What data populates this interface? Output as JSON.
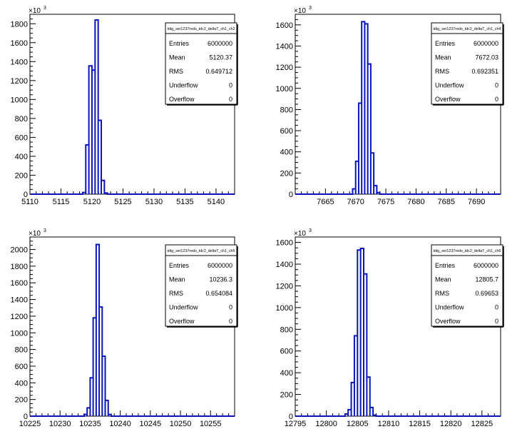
{
  "chart_data": [
    {
      "type": "histogram",
      "stats": {
        "title": "tdig_ser1237redo_tdc2_deltaT_ch1_ch2",
        "rows": [
          {
            "label": "Entries",
            "value": "6000000"
          },
          {
            "label": "Mean",
            "value": "5120.37"
          },
          {
            "label": "RMS",
            "value": "0.649712"
          },
          {
            "label": "Underflow",
            "value": "0"
          },
          {
            "label": "Overflow",
            "value": "0"
          }
        ]
      },
      "y_multiplier": "×10",
      "y_multiplier_exp": "3",
      "xlim": [
        5110,
        5143
      ],
      "ylim": [
        0,
        1900
      ],
      "xticks": [
        5110,
        5115,
        5120,
        5125,
        5130,
        5135,
        5140
      ],
      "yticks": [
        0,
        200,
        400,
        600,
        800,
        1000,
        1200,
        1400,
        1600,
        1800
      ],
      "bin_width": 0.5,
      "bins": [
        {
          "x": 5118.5,
          "y": 18
        },
        {
          "x": 5119.0,
          "y": 520
        },
        {
          "x": 5119.5,
          "y": 1355
        },
        {
          "x": 5120.0,
          "y": 1310
        },
        {
          "x": 5120.5,
          "y": 1840
        },
        {
          "x": 5121.0,
          "y": 780
        },
        {
          "x": 5121.5,
          "y": 145
        },
        {
          "x": 5122.0,
          "y": 12
        }
      ]
    },
    {
      "type": "histogram",
      "stats": {
        "title": "tdig_ser1237redo_tdc2_deltaT_ch1_ch4",
        "rows": [
          {
            "label": "Entries",
            "value": "6000000"
          },
          {
            "label": "Mean",
            "value": "7672.03"
          },
          {
            "label": "RMS",
            "value": "0.692351"
          },
          {
            "label": "Underflow",
            "value": "0"
          },
          {
            "label": "Overflow",
            "value": "0"
          }
        ]
      },
      "y_multiplier": "×10",
      "y_multiplier_exp": "3",
      "xlim": [
        7660,
        7694
      ],
      "ylim": [
        0,
        1700
      ],
      "xticks": [
        7665,
        7670,
        7675,
        7680,
        7685,
        7690
      ],
      "yticks": [
        0,
        200,
        400,
        600,
        800,
        1000,
        1200,
        1400,
        1600
      ],
      "bin_width": 0.5,
      "bins": [
        {
          "x": 7669.5,
          "y": 50
        },
        {
          "x": 7670.0,
          "y": 310
        },
        {
          "x": 7670.5,
          "y": 860
        },
        {
          "x": 7671.0,
          "y": 1630
        },
        {
          "x": 7671.5,
          "y": 1610
        },
        {
          "x": 7672.0,
          "y": 1230
        },
        {
          "x": 7672.5,
          "y": 390
        },
        {
          "x": 7673.0,
          "y": 80
        },
        {
          "x": 7673.5,
          "y": 15
        }
      ]
    },
    {
      "type": "histogram",
      "stats": {
        "title": "tdig_ser1237redo_tdc2_deltaT_ch1_ch5",
        "rows": [
          {
            "label": "Entries",
            "value": "6000000"
          },
          {
            "label": "Mean",
            "value": "10236.3"
          },
          {
            "label": "RMS",
            "value": "0.654084"
          },
          {
            "label": "Underflow",
            "value": "0"
          },
          {
            "label": "Overflow",
            "value": "0"
          }
        ]
      },
      "y_multiplier": "×10",
      "y_multiplier_exp": "3",
      "xlim": [
        10225,
        10259
      ],
      "ylim": [
        0,
        2150
      ],
      "xticks": [
        10225,
        10230,
        10235,
        10240,
        10245,
        10250,
        10255
      ],
      "yticks": [
        0,
        200,
        400,
        600,
        800,
        1000,
        1200,
        1400,
        1600,
        1800,
        2000
      ],
      "bin_width": 0.5,
      "bins": [
        {
          "x": 10234.0,
          "y": 20
        },
        {
          "x": 10234.5,
          "y": 100
        },
        {
          "x": 10235.0,
          "y": 460
        },
        {
          "x": 10235.5,
          "y": 1180
        },
        {
          "x": 10236.0,
          "y": 2060
        },
        {
          "x": 10236.5,
          "y": 1310
        },
        {
          "x": 10237.0,
          "y": 720
        },
        {
          "x": 10237.5,
          "y": 190
        },
        {
          "x": 10238.0,
          "y": 20
        }
      ]
    },
    {
      "type": "histogram",
      "stats": {
        "title": "tdig_ser1237redo_tdc2_deltaT_ch1_ch6",
        "rows": [
          {
            "label": "Entries",
            "value": "6000000"
          },
          {
            "label": "Mean",
            "value": "12805.7"
          },
          {
            "label": "RMS",
            "value": "0.69653"
          },
          {
            "label": "Underflow",
            "value": "0"
          },
          {
            "label": "Overflow",
            "value": "0"
          }
        ]
      },
      "y_multiplier": "×10",
      "y_multiplier_exp": "3",
      "xlim": [
        12795,
        12828
      ],
      "ylim": [
        0,
        1650
      ],
      "xticks": [
        12795,
        12800,
        12805,
        12810,
        12815,
        12820,
        12825
      ],
      "yticks": [
        0,
        200,
        400,
        600,
        800,
        1000,
        1200,
        1400,
        1600
      ],
      "bin_width": 0.5,
      "bins": [
        {
          "x": 12803.0,
          "y": 20
        },
        {
          "x": 12803.5,
          "y": 60
        },
        {
          "x": 12804.0,
          "y": 310
        },
        {
          "x": 12804.5,
          "y": 740
        },
        {
          "x": 12805.0,
          "y": 1530
        },
        {
          "x": 12805.5,
          "y": 1545
        },
        {
          "x": 12806.0,
          "y": 1310
        },
        {
          "x": 12806.5,
          "y": 360
        },
        {
          "x": 12807.0,
          "y": 80
        },
        {
          "x": 12807.5,
          "y": 10
        }
      ]
    }
  ]
}
